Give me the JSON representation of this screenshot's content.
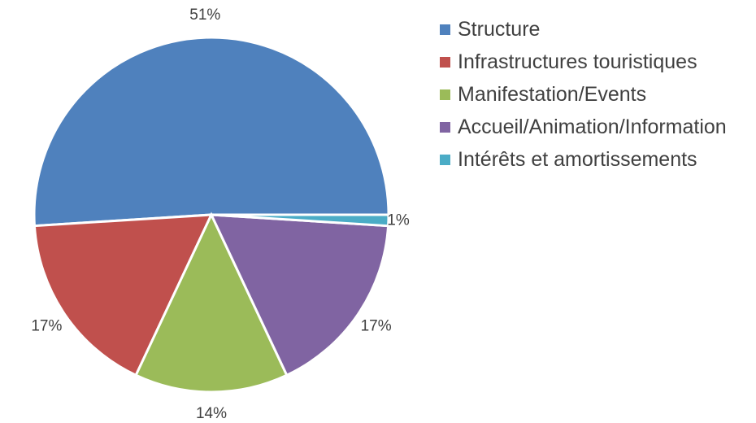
{
  "chart_data": {
    "type": "pie",
    "categories": [
      "Structure",
      "Infrastructures touristiques",
      "Manifestation/Events",
      "Accueil/Animation/Information",
      "Intérêts et amortissements"
    ],
    "values": [
      51,
      17,
      14,
      17,
      1
    ],
    "value_labels": [
      "51%",
      "17%",
      "14%",
      "17%",
      "1%"
    ],
    "colors": [
      "#4f81bd",
      "#c0504d",
      "#9bbb59",
      "#8064a2",
      "#4bacc6"
    ],
    "legend": "right"
  }
}
